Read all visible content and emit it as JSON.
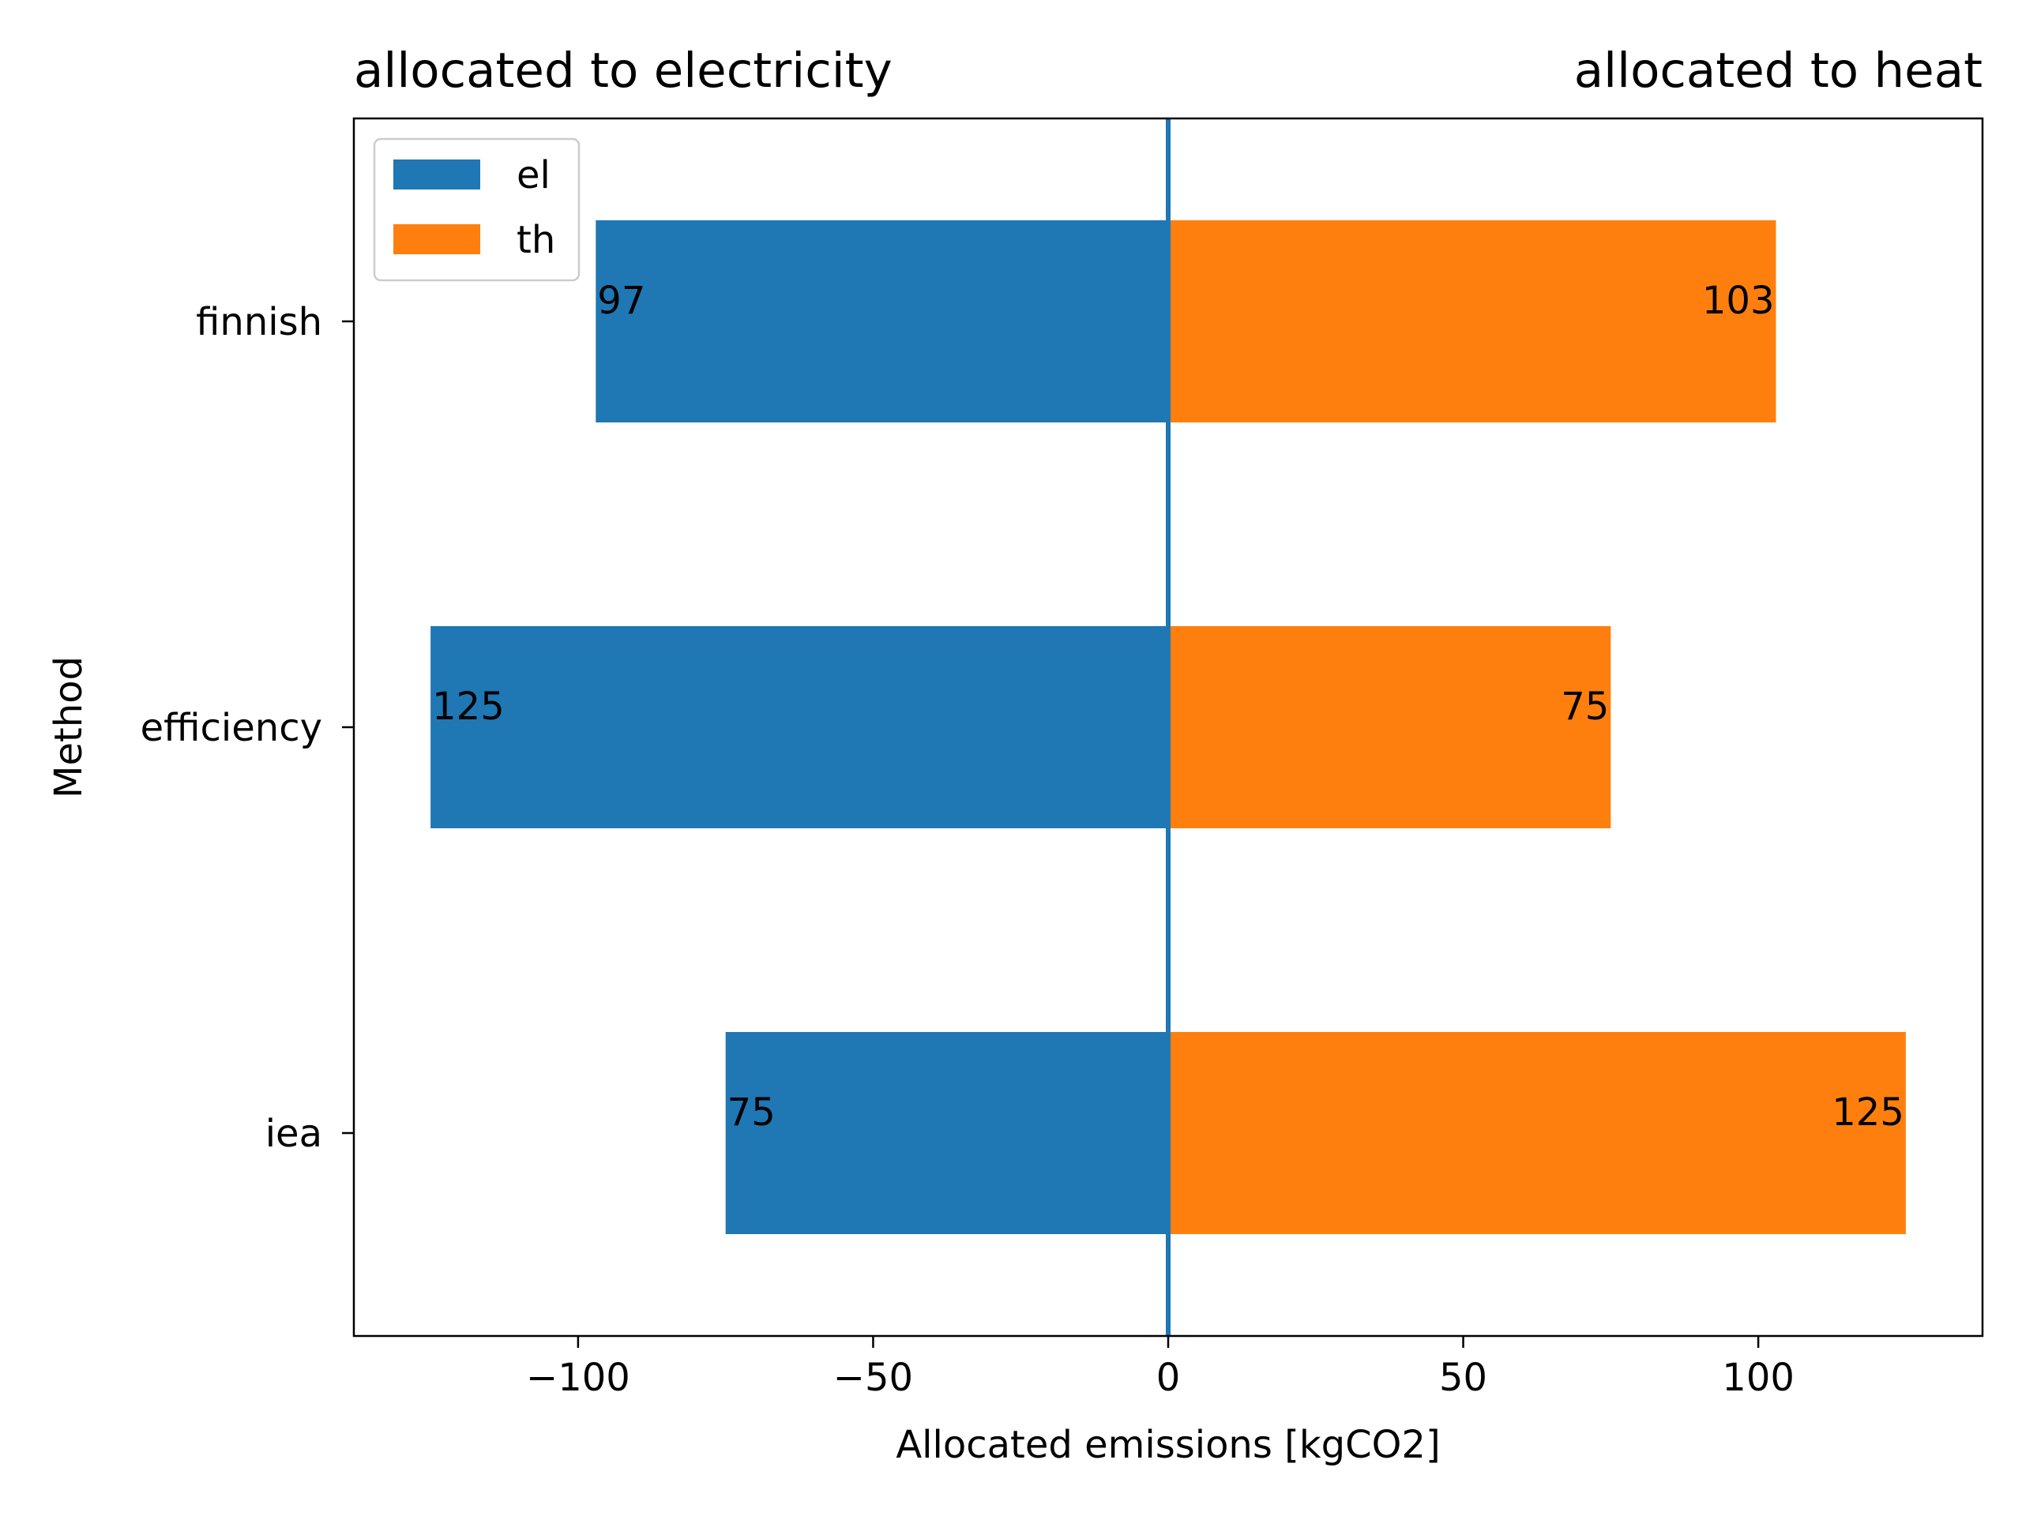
{
  "chart_data": {
    "type": "bar",
    "orientation": "horizontal",
    "layout": "diverging",
    "title_left": "allocated to electricity",
    "title_right": "allocated to heat",
    "xlabel": "Allocated emissions [kgCO2]",
    "ylabel": "Method",
    "categories": [
      "finnish",
      "efficiency",
      "iea"
    ],
    "series": [
      {
        "name": "el",
        "values": [
          -97,
          -125,
          -75
        ],
        "labels": [
          "97",
          "125",
          "75"
        ],
        "color": "#1f77b4"
      },
      {
        "name": "th",
        "values": [
          103,
          75,
          125
        ],
        "labels": [
          "103",
          "75",
          "125"
        ],
        "color": "#ff7f0e"
      }
    ],
    "xlim": [
      -138,
      138
    ],
    "xticks": [
      -100,
      -50,
      0,
      50,
      100
    ],
    "xtick_labels": [
      "−100",
      "−50",
      "0",
      "50",
      "100"
    ],
    "zero_line": {
      "value": 0,
      "color": "#1f77b4"
    },
    "grid": false,
    "legend_position": "top-left"
  }
}
